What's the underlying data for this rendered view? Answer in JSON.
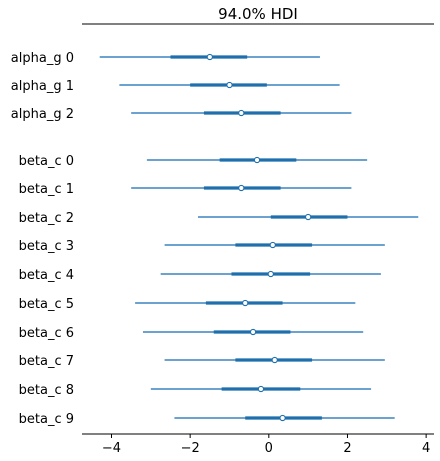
{
  "chart_data": {
    "type": "forest",
    "title": "94.0% HDI",
    "xlim": [
      -4.75,
      4.2
    ],
    "xticks": [
      {
        "value": -4,
        "label": "−4"
      },
      {
        "value": -2,
        "label": "−2"
      },
      {
        "value": 0,
        "label": "0"
      },
      {
        "value": 2,
        "label": "2"
      },
      {
        "value": 4,
        "label": "4"
      }
    ],
    "colors": {
      "line": "#3b84c0",
      "thick": "#1f6fad",
      "marker_fill": "#ffffff"
    },
    "rows": [
      {
        "label": "alpha_g 0",
        "lo": -4.3,
        "hi": 1.3,
        "q25": -2.5,
        "q75": -0.55,
        "mean": -1.5
      },
      {
        "label": "alpha_g 1",
        "lo": -3.8,
        "hi": 1.8,
        "q25": -2.0,
        "q75": -0.05,
        "mean": -1.0
      },
      {
        "label": "alpha_g 2",
        "lo": -3.5,
        "hi": 2.1,
        "q25": -1.65,
        "q75": 0.3,
        "mean": -0.7
      },
      {
        "label": "beta_c 0",
        "lo": -3.1,
        "hi": 2.5,
        "q25": -1.25,
        "q75": 0.7,
        "mean": -0.3
      },
      {
        "label": "beta_c 1",
        "lo": -3.5,
        "hi": 2.1,
        "q25": -1.65,
        "q75": 0.3,
        "mean": -0.7
      },
      {
        "label": "beta_c 2",
        "lo": -1.8,
        "hi": 3.8,
        "q25": 0.05,
        "q75": 2.0,
        "mean": 1.0
      },
      {
        "label": "beta_c 3",
        "lo": -2.65,
        "hi": 2.95,
        "q25": -0.85,
        "q75": 1.1,
        "mean": 0.1
      },
      {
        "label": "beta_c 4",
        "lo": -2.75,
        "hi": 2.85,
        "q25": -0.95,
        "q75": 1.05,
        "mean": 0.05
      },
      {
        "label": "beta_c 5",
        "lo": -3.4,
        "hi": 2.2,
        "q25": -1.6,
        "q75": 0.35,
        "mean": -0.6
      },
      {
        "label": "beta_c 6",
        "lo": -3.2,
        "hi": 2.4,
        "q25": -1.4,
        "q75": 0.55,
        "mean": -0.4
      },
      {
        "label": "beta_c 7",
        "lo": -2.65,
        "hi": 2.95,
        "q25": -0.85,
        "q75": 1.1,
        "mean": 0.15
      },
      {
        "label": "beta_c 8",
        "lo": -3.0,
        "hi": 2.6,
        "q25": -1.2,
        "q75": 0.8,
        "mean": -0.2
      },
      {
        "label": "beta_c 9",
        "lo": -2.4,
        "hi": 3.2,
        "q25": -0.6,
        "q75": 1.35,
        "mean": 0.35
      }
    ]
  }
}
